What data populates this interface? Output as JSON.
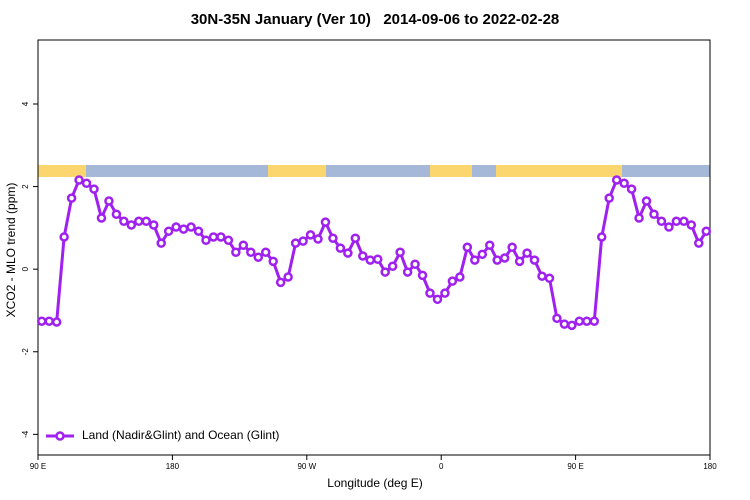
{
  "chart_data": {
    "type": "line",
    "title": "30N-35N January (Ver 10)   2014-09-06 to 2022-02-28",
    "x_label": "Longitude (deg E)",
    "y_label": "XCO2 - MLO trend (ppm)",
    "xlim": [
      90,
      540
    ],
    "ylim": [
      -4.5,
      5.55
    ],
    "xticks": [
      {
        "value": 90,
        "label": "90 E"
      },
      {
        "value": 180,
        "label": "180"
      },
      {
        "value": 270,
        "label": "90 W"
      },
      {
        "value": 360,
        "label": "0"
      },
      {
        "value": 450,
        "label": "90 E"
      },
      {
        "value": 540,
        "label": "180"
      }
    ],
    "yticks": [
      -4,
      -2,
      0,
      2,
      4
    ],
    "legend": "bottom-left",
    "x": [
      92.5,
      97.5,
      102.5,
      107.5,
      112.5,
      117.5,
      122.5,
      127.5,
      132.5,
      137.5,
      142.5,
      147.5,
      152.5,
      157.5,
      162.5,
      167.5,
      172.5,
      177.5,
      182.5,
      187.5,
      192.5,
      197.5,
      202.5,
      207.5,
      212.5,
      217.5,
      222.5,
      227.5,
      232.5,
      237.5,
      242.5,
      247.5,
      252.5,
      257.5,
      262.5,
      267.5,
      272.5,
      277.5,
      282.5,
      287.5,
      292.5,
      297.5,
      302.5,
      307.5,
      312.5,
      317.5,
      322.5,
      327.5,
      332.5,
      337.5,
      342.5,
      347.5,
      352.5,
      357.5,
      362.5,
      367.5,
      372.5,
      377.5,
      382.5,
      387.5,
      392.5,
      397.5,
      402.5,
      407.5,
      412.5,
      417.5,
      422.5,
      427.5,
      432.5,
      437.5,
      442.5,
      447.5,
      452.5,
      457.5,
      462.5,
      467.5,
      472.5,
      477.5,
      482.5,
      487.5,
      492.5,
      497.5,
      502.5,
      507.5,
      512.5,
      517.5,
      522.5,
      527.5,
      532.5,
      537.5
    ],
    "series": [
      {
        "name": "Land (Nadir&Glint) and Ocean (Glint)",
        "color": "#a020f0",
        "values": [
          -1.26,
          -1.26,
          -1.28,
          0.78,
          1.72,
          2.16,
          2.08,
          1.94,
          1.24,
          1.65,
          1.33,
          1.16,
          1.07,
          1.16,
          1.16,
          1.07,
          0.63,
          0.92,
          1.02,
          0.97,
          1.02,
          0.92,
          0.7,
          0.78,
          0.78,
          0.7,
          0.41,
          0.58,
          0.41,
          0.29,
          0.41,
          0.19,
          -0.32,
          -0.19,
          0.63,
          0.68,
          0.83,
          0.73,
          1.14,
          0.75,
          0.51,
          0.39,
          0.75,
          0.32,
          0.22,
          0.24,
          -0.07,
          0.07,
          0.41,
          -0.07,
          0.12,
          -0.15,
          -0.58,
          -0.73,
          -0.58,
          -0.29,
          -0.19,
          0.53,
          0.22,
          0.36,
          0.58,
          0.22,
          0.27,
          0.53,
          0.19,
          0.39,
          0.22,
          -0.17,
          -0.22,
          -1.19,
          -1.33,
          -1.36,
          -1.26,
          -1.26,
          -1.26,
          0.78,
          1.72,
          2.16,
          2.08,
          1.94,
          1.24,
          1.65,
          1.33,
          1.16,
          1.02,
          1.16,
          1.16,
          1.07,
          0.63,
          0.92
        ]
      }
    ]
  }
}
